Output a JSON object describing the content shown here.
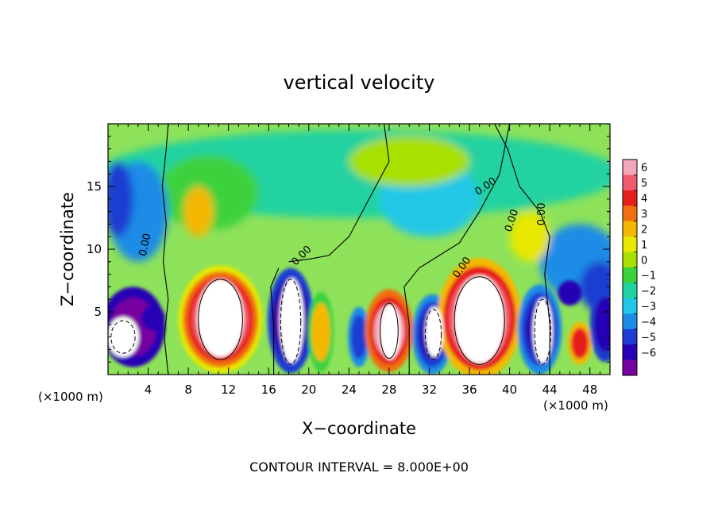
{
  "chart_data": {
    "type": "heatmap",
    "title": "vertical velocity",
    "xlabel": "X−coordinate",
    "ylabel": "Z−coordinate",
    "x_unit": "(×1000 m)",
    "y_unit": "(×1000 m)",
    "footer": "CONTOUR INTERVAL = 8.000E+00",
    "xlim": [
      0,
      50
    ],
    "ylim": [
      0,
      20
    ],
    "x_ticks": [
      4,
      8,
      12,
      16,
      20,
      24,
      28,
      32,
      36,
      40,
      44,
      48
    ],
    "x_tick_labels": [
      "4",
      "8",
      "12",
      "16",
      "20",
      "24",
      "28",
      "32",
      "36",
      "40",
      "44",
      "48"
    ],
    "y_ticks": [
      5,
      10,
      15
    ],
    "y_tick_labels": [
      "5",
      "10",
      "15"
    ],
    "colorbar": {
      "levels": [
        6,
        5,
        4,
        3,
        2,
        1,
        0,
        -1,
        -2,
        -3,
        -4,
        -5,
        -6
      ],
      "labels": [
        "6",
        "5",
        "4",
        "3",
        "2",
        "1",
        "0",
        "−1",
        "−2",
        "−3",
        "−4",
        "−5",
        "−6"
      ],
      "colors": [
        "#f2a8b8",
        "#f05a6a",
        "#e61e1e",
        "#f07010",
        "#f5b800",
        "#e8e800",
        "#a8e000",
        "#3cd23c",
        "#20d2a0",
        "#20c8e6",
        "#1e8ce6",
        "#1e3cd2",
        "#2800b4",
        "#7800a0"
      ]
    },
    "contour_labels": [
      "0.00",
      "0.00",
      "0.00",
      "0.00",
      "0.00",
      "0.00"
    ]
  }
}
